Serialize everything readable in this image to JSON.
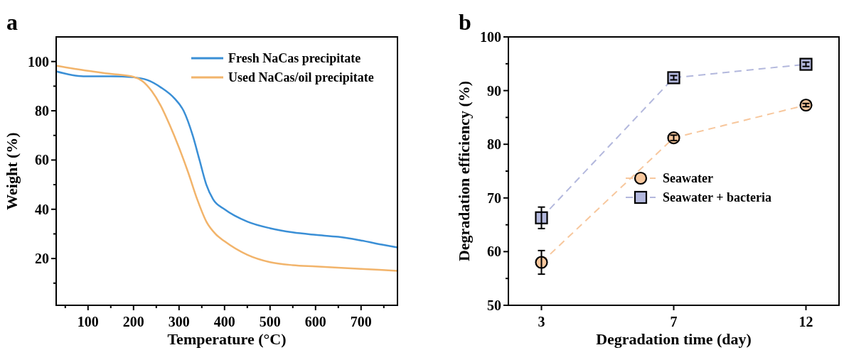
{
  "chart_data": [
    {
      "type": "line",
      "title": "a",
      "xlabel": "Temperature (°C)",
      "ylabel": "Weight (%)",
      "xlim": [
        30,
        780
      ],
      "ylim": [
        1,
        110
      ],
      "xticks": [
        {
          "value": 50,
          "label": null
        },
        100,
        {
          "value": 150,
          "label": null
        },
        200,
        {
          "value": 250,
          "label": null
        },
        300,
        {
          "value": 350,
          "label": null
        },
        400,
        {
          "value": 450,
          "label": null
        },
        500,
        {
          "value": 550,
          "label": null
        },
        600,
        {
          "value": 650,
          "label": null
        },
        700,
        {
          "value": 750,
          "label": null
        }
      ],
      "yticks": [
        {
          "value": 10,
          "label": null
        },
        20,
        {
          "value": 30,
          "label": null
        },
        40,
        {
          "value": 50,
          "label": null
        },
        60,
        {
          "value": 70,
          "label": null
        },
        80,
        {
          "value": 90,
          "label": null
        },
        100
      ],
      "legend": "top right",
      "grid": false,
      "series": [
        {
          "name": "Fresh NaCas precipitate",
          "color": "#3a8fd6",
          "x": [
            30,
            90,
            150,
            200,
            230,
            260,
            290,
            310,
            330,
            345,
            360,
            375,
            400,
            450,
            500,
            550,
            600,
            650,
            700,
            750,
            780
          ],
          "values": [
            96,
            94,
            94,
            93.6,
            92.5,
            89.5,
            85,
            80,
            70,
            60,
            50,
            44,
            40,
            35,
            32.3,
            30.6,
            29.6,
            28.8,
            27.3,
            25.5,
            24.5
          ]
        },
        {
          "name": "Used NaCas/oil precipitate",
          "color": "#f2b46b",
          "x": [
            30,
            100,
            150,
            200,
            220,
            240,
            260,
            280,
            300,
            320,
            340,
            360,
            380,
            400,
            450,
            500,
            550,
            600,
            700,
            780
          ],
          "values": [
            98.3,
            96.2,
            95,
            93.8,
            92,
            88,
            82,
            74,
            65,
            55,
            44,
            35,
            30,
            27,
            21.5,
            18.5,
            17.3,
            16.8,
            15.8,
            15
          ]
        }
      ]
    },
    {
      "type": "line",
      "title": "b",
      "xlabel": "Degradation time (day)",
      "ylabel": "Degradation efficiency (%)",
      "categories": [
        "3",
        "7",
        "12"
      ],
      "ylim": [
        50,
        100
      ],
      "yticks": [
        50,
        {
          "value": 55,
          "label": null
        },
        60,
        {
          "value": 65,
          "label": null
        },
        70,
        {
          "value": 75,
          "label": null
        },
        80,
        {
          "value": 85,
          "label": null
        },
        90,
        {
          "value": 95,
          "label": null
        },
        100
      ],
      "legend": "right",
      "grid": false,
      "line_style": "dashed",
      "series": [
        {
          "name": "Seawater",
          "color": "#f7c79d",
          "marker": "circle",
          "values": [
            58,
            81.2,
            87.3
          ],
          "errors": [
            2.2,
            0.5,
            0.3
          ]
        },
        {
          "name": "Seawater + bacteria",
          "color": "#b3b8dd",
          "marker": "square",
          "values": [
            66.3,
            92.4,
            94.9
          ],
          "errors": [
            2,
            0.4,
            0.4
          ]
        }
      ]
    }
  ]
}
